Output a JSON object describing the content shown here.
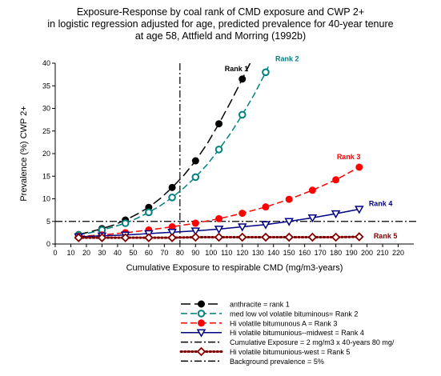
{
  "chart_data": {
    "type": "line",
    "title_lines": [
      "Exposure-Response by coal rank of CMD exposure and CWP 2+",
      "in logistic regression adjusted for age, predicted prevalence for 40-year tenure",
      "at age 58, Attfield and Morring (1992b)"
    ],
    "xlabel": "Cumulative Exposure to respirable CMD (mg/m3-years)",
    "ylabel": "Prevalence (%) CWP 2+",
    "xlim": [
      0,
      230
    ],
    "ylim": [
      0,
      40
    ],
    "x_ticks": [
      0,
      10,
      20,
      30,
      40,
      50,
      60,
      70,
      80,
      90,
      100,
      110,
      120,
      130,
      140,
      150,
      160,
      170,
      180,
      190,
      200,
      210,
      220
    ],
    "y_ticks": [
      0,
      5,
      10,
      15,
      20,
      25,
      30,
      35,
      40
    ],
    "grid": false,
    "series": [
      {
        "name": "anthracite = rank 1",
        "label": "Rank 1",
        "color": "#000000",
        "marker": "filled-circle",
        "line": "long-dash",
        "x": [
          15,
          30,
          45,
          60,
          75,
          90,
          105,
          120
        ],
        "y": [
          2.1,
          3.4,
          5.3,
          8.1,
          12.5,
          18.4,
          26.6,
          36.5
        ],
        "curve_x": [
          15,
          22.5,
          30,
          37.5,
          45,
          52.5,
          60,
          67.5,
          75,
          82.5,
          90,
          97.5,
          105,
          112.5,
          120,
          125
        ],
        "curve_y": [
          2.1,
          2.7,
          3.4,
          4.2,
          5.3,
          6.6,
          8.1,
          10.1,
          12.5,
          15.2,
          18.4,
          22.2,
          26.6,
          31.4,
          36.5,
          40
        ]
      },
      {
        "name": "med low vol volatile bituminous= Rank 2",
        "label": "Rank 2",
        "color": "#008080",
        "marker": "open-circle",
        "line": "dash",
        "x": [
          15,
          30,
          45,
          60,
          75,
          90,
          105,
          120,
          135
        ],
        "y": [
          2.0,
          3.1,
          4.6,
          7.0,
          10.3,
          14.8,
          20.9,
          28.6,
          38.0
        ],
        "curve_x": [
          15,
          22.5,
          30,
          37.5,
          45,
          52.5,
          60,
          67.5,
          75,
          82.5,
          90,
          97.5,
          105,
          112.5,
          120,
          127.5,
          135,
          137
        ],
        "curve_y": [
          2.0,
          2.5,
          3.1,
          3.8,
          4.6,
          5.7,
          7.0,
          8.5,
          10.3,
          12.4,
          14.8,
          17.6,
          20.9,
          24.5,
          28.6,
          33.0,
          38.0,
          39.5
        ]
      },
      {
        "name": "Hi volatile bitumunous A = Rank 3",
        "label": "Rank 3",
        "color": "#ff0000",
        "marker": "filled-circle",
        "line": "dash",
        "x": [
          15,
          30,
          45,
          60,
          75,
          90,
          105,
          120,
          135,
          150,
          165,
          180,
          195
        ],
        "y": [
          1.7,
          2.0,
          2.5,
          3.1,
          3.8,
          4.6,
          5.6,
          6.8,
          8.2,
          9.9,
          11.9,
          14.2,
          17.0
        ]
      },
      {
        "name": "Hi volatile bitumunious--midwest = Rank 4",
        "label": "Rank 4",
        "color": "#000080",
        "marker": "open-triangle-down",
        "line": "solid",
        "x": [
          15,
          30,
          45,
          60,
          75,
          90,
          105,
          120,
          135,
          150,
          165,
          180,
          195
        ],
        "y": [
          1.6,
          1.8,
          2.0,
          2.3,
          2.6,
          2.9,
          3.3,
          3.8,
          4.3,
          5.0,
          5.8,
          6.7,
          7.7
        ]
      },
      {
        "name": "Hi volatile bitumunious-west = Rank 5",
        "label": "Rank 5",
        "color": "#800000",
        "marker": "open-diamond",
        "line": "dotted",
        "x": [
          15,
          30,
          45,
          60,
          75,
          90,
          105,
          120,
          135,
          150,
          165,
          180,
          195
        ],
        "y": [
          1.4,
          1.4,
          1.4,
          1.4,
          1.4,
          1.5,
          1.5,
          1.5,
          1.5,
          1.5,
          1.5,
          1.5,
          1.6
        ]
      }
    ],
    "reference_lines": [
      {
        "name": "Cumulative Exposure = 2 mg/m3 x 40-years 80 mg/",
        "orientation": "vertical",
        "value": 80,
        "color": "#000000",
        "line": "dash-dot"
      },
      {
        "name": "Background prevalence = 5%",
        "orientation": "horizontal",
        "value": 5,
        "color": "#000000",
        "line": "dash-dot"
      }
    ],
    "legend": {
      "placement": "bottom",
      "entries": [
        "anthracite = rank 1",
        "med low vol volatile bituminous= Rank 2",
        "Hi volatile bitumunous A = Rank 3",
        "Hi volatile bitumunious--midwest = Rank 4",
        "Cumulative Exposure = 2 mg/m3 x 40-years 80 mg/",
        "Hi volatile bitumunious-west = Rank 5",
        "Background prevalence = 5%"
      ]
    }
  }
}
